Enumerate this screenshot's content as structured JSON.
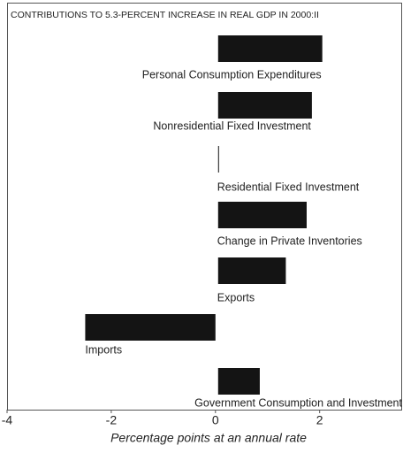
{
  "chart_data": {
    "type": "bar",
    "orientation": "horizontal",
    "title": "CONTRIBUTIONS TO 5.3-PERCENT INCREASE IN REAL GDP IN 2000:II",
    "x_label": "Percentage points at an annual rate",
    "categories": [
      "Personal Consumption Expenditures",
      "Nonresidential Fixed Investment",
      "Residential Fixed Investment",
      "Change in Private Inventories",
      "Exports",
      "Imports",
      "Government Consumption and Investment"
    ],
    "values": [
      2.0,
      1.8,
      0.0,
      1.7,
      1.3,
      -2.5,
      0.8
    ],
    "color": "#141414",
    "xlim": [
      -4,
      3.6
    ],
    "xticks": [
      -4,
      -2,
      0,
      2
    ]
  }
}
